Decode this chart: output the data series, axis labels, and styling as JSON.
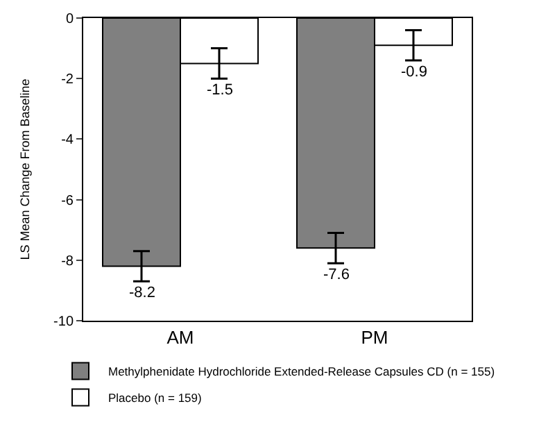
{
  "chart_data": {
    "type": "bar",
    "ylabel": "LS Mean Change From Baseline",
    "categories": [
      "AM",
      "PM"
    ],
    "series": [
      {
        "name": "Methylphenidate Hydrochloride Extended-Release Capsules CD (n = 155)",
        "color": "#808080",
        "values": [
          -8.2,
          -7.6
        ],
        "errors": [
          0.5,
          0.5
        ]
      },
      {
        "name": "Placebo (n = 159)",
        "color": "#ffffff",
        "values": [
          -1.5,
          -0.9
        ],
        "errors": [
          0.5,
          0.5
        ]
      }
    ],
    "ylim": [
      -10,
      0
    ],
    "yticks": [
      0,
      -2,
      -4,
      -6,
      -8,
      -10
    ],
    "data_labels": true,
    "legend": "bottom"
  }
}
